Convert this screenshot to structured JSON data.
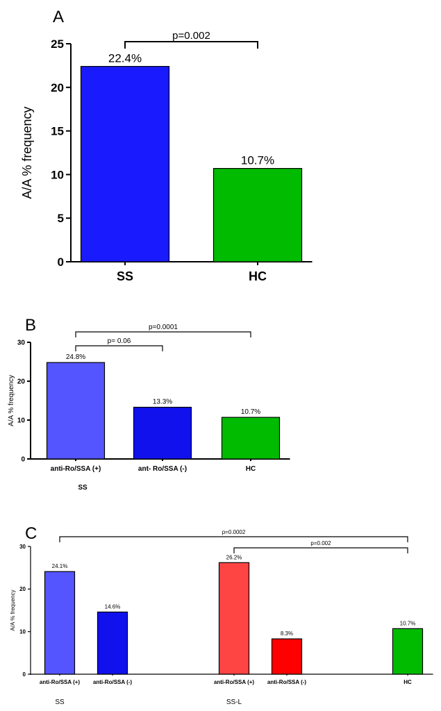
{
  "figure": {
    "panel_labels": [
      "A",
      "B",
      "C"
    ]
  },
  "chart_data": [
    {
      "type": "bar",
      "panel": "A",
      "title": "",
      "xlabel": "",
      "ylabel": "A/A % frequency",
      "ylim": [
        0,
        25
      ],
      "yticks": [
        "0",
        "5",
        "10",
        "15",
        "20",
        "25"
      ],
      "categories": [
        "SS",
        "HC"
      ],
      "values": [
        22.4,
        10.7
      ],
      "data_labels": [
        "22.4%",
        "10.7%"
      ],
      "colors": [
        "#1a1aff",
        "#00bb00"
      ],
      "annotations": [
        {
          "text": "p=0.002",
          "from": 0,
          "to": 1
        }
      ]
    },
    {
      "type": "bar",
      "panel": "B",
      "title": "",
      "xlabel": "",
      "ylabel": "A/A % frequency",
      "ylim": [
        0,
        30
      ],
      "yticks": [
        "0",
        "10",
        "20",
        "30"
      ],
      "categories": [
        "anti-Ro/SSA (+)",
        "ant- Ro/SSA (-)",
        "HC"
      ],
      "values": [
        24.8,
        13.3,
        10.7
      ],
      "data_labels": [
        "24.8%",
        "13.3%",
        "10.7%"
      ],
      "colors": [
        "#5555ff",
        "#1111ee",
        "#00bb00"
      ],
      "group_labels": [
        {
          "text": "SS",
          "categories": [
            0,
            1
          ]
        }
      ],
      "annotations": [
        {
          "text": "p=0.0001",
          "from": 0,
          "to": 2
        },
        {
          "text": "p= 0.06",
          "from": 0,
          "to": 1
        }
      ]
    },
    {
      "type": "bar",
      "panel": "C",
      "title": "",
      "xlabel": "",
      "ylabel": "A/A % frequency",
      "ylim": [
        0,
        30
      ],
      "yticks": [
        "0",
        "10",
        "20",
        "30"
      ],
      "categories": [
        "anti-Ro/SSA (+)",
        "anti-Ro/SSA (-)",
        "anti-Ro/SSA (+)",
        "anti-Ro/SSA (-)",
        "HC"
      ],
      "values": [
        24.1,
        14.6,
        26.2,
        8.3,
        10.7
      ],
      "data_labels": [
        "24.1%",
        "14.6%",
        "26.2%",
        "8.3%",
        "10.7%"
      ],
      "colors": [
        "#5555ff",
        "#1111ee",
        "#ff4444",
        "#ff0000",
        "#00bb00"
      ],
      "group_labels": [
        {
          "text": "SS",
          "categories": [
            0,
            1
          ]
        },
        {
          "text": "SS-L",
          "categories": [
            2,
            3
          ]
        }
      ],
      "annotations": [
        {
          "text": "p=0.0002",
          "from": 0,
          "to": 4
        },
        {
          "text": "p=0.002",
          "from": 2,
          "to": 4
        }
      ]
    }
  ]
}
